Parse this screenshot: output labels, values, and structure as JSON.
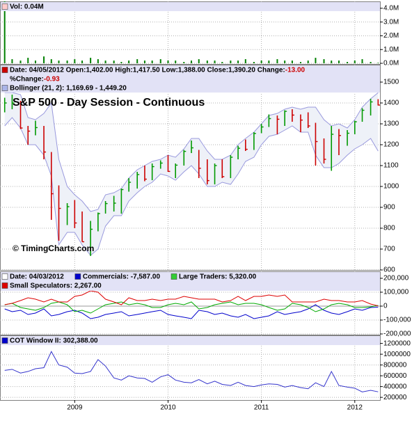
{
  "chart_data": [
    {
      "type": "bar",
      "header": [],
      "x": [
        2008.25,
        2008.33,
        2008.42,
        2008.5,
        2008.58,
        2008.67,
        2008.75,
        2008.83,
        2008.92,
        2009,
        2009.08,
        2009.17,
        2009.25,
        2009.33,
        2009.42,
        2009.5,
        2009.58,
        2009.67,
        2009.75,
        2009.83,
        2009.92,
        2010,
        2010.08,
        2010.17,
        2010.25,
        2010.33,
        2010.42,
        2010.5,
        2010.58,
        2010.67,
        2010.75,
        2010.83,
        2010.92,
        2011,
        2011.08,
        2011.17,
        2011.25,
        2011.33,
        2011.42,
        2011.5,
        2011.58,
        2011.67,
        2011.75,
        2011.83,
        2011.92,
        2012,
        2012.08,
        2012.17,
        2012.25
      ],
      "series": [
        {
          "name": "Vol: 0.04M",
          "color": "#008000",
          "box": "#ffcccc",
          "values": [
            4.5,
            0.3,
            0.2,
            0.4,
            0.2,
            0.5,
            0.3,
            0.2,
            0.2,
            0.3,
            0.2,
            0.4,
            0.3,
            0.2,
            0.2,
            0.1,
            0.2,
            0.3,
            0.2,
            0.2,
            0.3,
            0.2,
            0.2,
            0.1,
            0.2,
            0.3,
            0.2,
            0.2,
            0.1,
            0.2,
            0.2,
            0.3,
            0.1,
            0.2,
            0.2,
            0.3,
            0.2,
            0.2,
            0.1,
            0.2,
            0.4,
            0.3,
            0.2,
            0.2,
            0.1,
            0.2,
            0.3,
            0.1,
            0.04
          ]
        }
      ],
      "xlim": [
        2008.2,
        2012.27
      ],
      "xticks": [
        2009,
        2010,
        2011,
        2012
      ],
      "ylim": [
        0,
        4.5
      ],
      "yticks": [
        {
          "value": 0,
          "label": "0.0M"
        },
        {
          "value": 1,
          "label": "1.0M"
        },
        {
          "value": 2,
          "label": "2.0M"
        },
        {
          "value": 3,
          "label": "3.0M"
        },
        {
          "value": 4,
          "label": "4.0M"
        }
      ],
      "grid": true
    },
    {
      "type": "ohlc",
      "title": "S&P 500 - Day Session - Continuous",
      "annotation": "© TimingCharts.com",
      "header": [
        [
          {
            "box": "#cc0000",
            "text": [
              {
                "text": "Date: 04/05/2012 Open:1,402.00 High:1,417.50 Low:1,388.00 Close:1,390.20 Change:"
              },
              {
                "text": "-13.00",
                "color": "#cc0000"
              }
            ]
          }
        ],
        [
          {
            "text": [
              {
                "text": "%Change:"
              },
              {
                "text": "-0.93",
                "color": "#cc0000"
              }
            ]
          }
        ]
      ],
      "x": [
        2008.25,
        2008.33,
        2008.42,
        2008.5,
        2008.58,
        2008.67,
        2008.75,
        2008.83,
        2008.92,
        2009,
        2009.08,
        2009.17,
        2009.25,
        2009.33,
        2009.42,
        2009.5,
        2009.58,
        2009.67,
        2009.75,
        2009.83,
        2009.92,
        2010,
        2010.08,
        2010.17,
        2010.25,
        2010.33,
        2010.42,
        2010.5,
        2010.58,
        2010.67,
        2010.75,
        2010.83,
        2010.92,
        2011,
        2011.08,
        2011.17,
        2011.25,
        2011.33,
        2011.42,
        2011.5,
        2011.58,
        2011.67,
        2011.75,
        2011.83,
        2011.92,
        2012,
        2012.08,
        2012.17,
        2012.25
      ],
      "high": [
        1425,
        1440,
        1410,
        1290,
        1315,
        1290,
        1165,
        1005,
        920,
        935,
        880,
        835,
        875,
        930,
        955,
        990,
        1040,
        1070,
        1100,
        1110,
        1125,
        1150,
        1110,
        1175,
        1220,
        1175,
        1130,
        1110,
        1130,
        1150,
        1195,
        1225,
        1260,
        1300,
        1345,
        1340,
        1365,
        1370,
        1345,
        1355,
        1305,
        1230,
        1290,
        1275,
        1270,
        1315,
        1375,
        1420,
        1418
      ],
      "low": [
        1355,
        1370,
        1275,
        1200,
        1245,
        1130,
        840,
        740,
        815,
        800,
        735,
        667,
        785,
        870,
        880,
        870,
        975,
        990,
        1025,
        1030,
        1085,
        1070,
        1040,
        1100,
        1160,
        1040,
        1010,
        1010,
        1040,
        1040,
        1130,
        1170,
        1175,
        1255,
        1285,
        1250,
        1290,
        1310,
        1260,
        1280,
        1100,
        1110,
        1075,
        1150,
        1195,
        1250,
        1310,
        1340,
        1388
      ],
      "close": [
        1400,
        1400,
        1280,
        1265,
        1282,
        1165,
        965,
        895,
        903,
        825,
        735,
        795,
        870,
        918,
        920,
        985,
        1020,
        1057,
        1035,
        1095,
        1112,
        1072,
        1102,
        1168,
        1185,
        1087,
        1028,
        1100,
        1047,
        1140,
        1183,
        1178,
        1254,
        1285,
        1325,
        1322,
        1360,
        1342,
        1318,
        1290,
        1215,
        1130,
        1250,
        1244,
        1255,
        1310,
        1365,
        1405,
        1390
      ],
      "up_color": "#009900",
      "down_color": "#cc0000",
      "bands": {
        "name": "Bollinger (21, 2): 1,169.69 - 1,449.20",
        "color": "#9999dd",
        "box": "#aab4e8",
        "fill": "#eef1f8",
        "upper": [
          1450,
          1450,
          1440,
          1330,
          1320,
          1350,
          1400,
          1130,
          1000,
          960,
          930,
          880,
          890,
          960,
          970,
          990,
          1040,
          1080,
          1100,
          1120,
          1130,
          1150,
          1140,
          1180,
          1230,
          1230,
          1170,
          1130,
          1130,
          1150,
          1200,
          1230,
          1260,
          1300,
          1340,
          1350,
          1370,
          1380,
          1370,
          1380,
          1380,
          1320,
          1290,
          1300,
          1280,
          1320,
          1380,
          1420,
          1449.2
        ],
        "lower": [
          1290,
          1330,
          1280,
          1200,
          1200,
          1150,
          1050,
          720,
          780,
          780,
          720,
          670,
          700,
          810,
          860,
          860,
          930,
          970,
          1000,
          1020,
          1060,
          1050,
          1030,
          1070,
          1100,
          1060,
          1000,
          1000,
          1020,
          1010,
          1060,
          1120,
          1140,
          1200,
          1240,
          1250,
          1270,
          1290,
          1260,
          1260,
          1150,
          1090,
          1090,
          1110,
          1150,
          1180,
          1200,
          1230,
          1169.69
        ]
      },
      "xlim": [
        2008.2,
        2012.27
      ],
      "xticks": [
        2009,
        2010,
        2011,
        2012
      ],
      "ylim": [
        600,
        1500
      ],
      "yticks": [
        600,
        700,
        800,
        900,
        1000,
        1100,
        1200,
        1300,
        1400,
        1500
      ],
      "grid": true
    },
    {
      "type": "line",
      "header": [
        [
          {
            "box": "#ffffff",
            "text": [
              {
                "text": "Date: 04/03/2012"
              }
            ]
          }
        ]
      ],
      "x": [
        2008.25,
        2008.33,
        2008.42,
        2008.5,
        2008.58,
        2008.67,
        2008.75,
        2008.83,
        2008.92,
        2009,
        2009.08,
        2009.17,
        2009.25,
        2009.33,
        2009.42,
        2009.5,
        2009.58,
        2009.67,
        2009.75,
        2009.83,
        2009.92,
        2010,
        2010.08,
        2010.17,
        2010.25,
        2010.33,
        2010.42,
        2010.5,
        2010.58,
        2010.67,
        2010.75,
        2010.83,
        2010.92,
        2011,
        2011.08,
        2011.17,
        2011.25,
        2011.33,
        2011.42,
        2011.5,
        2011.58,
        2011.67,
        2011.75,
        2011.83,
        2011.92,
        2012,
        2012.08,
        2012.17,
        2012.25
      ],
      "series": [
        {
          "name": "Commercials: -7,587.00",
          "color": "#0000cc",
          "box": "#0000cc",
          "values": [
            -20000,
            -40000,
            -30000,
            -60000,
            -50000,
            -20000,
            -70000,
            -60000,
            -40000,
            -30000,
            -50000,
            -90000,
            -80000,
            -60000,
            -50000,
            -40000,
            -70000,
            -60000,
            -50000,
            -40000,
            -30000,
            -60000,
            -70000,
            -80000,
            -90000,
            -30000,
            -40000,
            -60000,
            -50000,
            -70000,
            -80000,
            -60000,
            -90000,
            -80000,
            -70000,
            -40000,
            -60000,
            -50000,
            -40000,
            -20000,
            10000,
            -30000,
            -50000,
            -60000,
            -40000,
            -20000,
            -30000,
            -10000,
            -7587
          ]
        },
        {
          "name": "Large Traders: 5,320.00",
          "color": "#00aa00",
          "box": "#33cc33",
          "values": [
            10000,
            20000,
            -10000,
            -20000,
            -30000,
            -10000,
            20000,
            30000,
            10000,
            -40000,
            -30000,
            -50000,
            -20000,
            10000,
            20000,
            30000,
            10000,
            20000,
            10000,
            -10000,
            -10000,
            10000,
            20000,
            10000,
            30000,
            -20000,
            -10000,
            10000,
            20000,
            30000,
            10000,
            20000,
            20000,
            10000,
            -10000,
            -30000,
            -20000,
            20000,
            10000,
            -10000,
            -40000,
            -20000,
            10000,
            20000,
            10000,
            -10000,
            -10000,
            -5000,
            5320
          ]
        },
        {
          "name": "Small Speculators: 2,267.00",
          "color": "#dd0000",
          "box": "#dd0000",
          "values": [
            10000,
            20000,
            40000,
            60000,
            50000,
            30000,
            50000,
            30000,
            30000,
            70000,
            80000,
            110000,
            100000,
            50000,
            30000,
            10000,
            60000,
            40000,
            40000,
            50000,
            40000,
            50000,
            50000,
            70000,
            60000,
            50000,
            50000,
            50000,
            30000,
            40000,
            70000,
            40000,
            70000,
            70000,
            80000,
            70000,
            80000,
            30000,
            30000,
            30000,
            30000,
            50000,
            40000,
            40000,
            30000,
            30000,
            40000,
            15000,
            2267
          ]
        }
      ],
      "xlim": [
        2008.2,
        2012.27
      ],
      "xticks": [
        2009,
        2010,
        2011,
        2012
      ],
      "ylim": [
        -200000,
        200000
      ],
      "yticks": [
        {
          "value": -200000,
          "label": "-200,000"
        },
        {
          "value": -100000,
          "label": "-100,000"
        },
        0,
        {
          "value": 100000,
          "label": "100,000"
        },
        {
          "value": 200000,
          "label": "200,000"
        }
      ],
      "grid": true
    },
    {
      "type": "line",
      "header": [],
      "x": [
        2008.25,
        2008.33,
        2008.42,
        2008.5,
        2008.58,
        2008.67,
        2008.75,
        2008.83,
        2008.92,
        2009,
        2009.08,
        2009.17,
        2009.25,
        2009.33,
        2009.42,
        2009.5,
        2009.58,
        2009.67,
        2009.75,
        2009.83,
        2009.92,
        2010,
        2010.08,
        2010.17,
        2010.25,
        2010.33,
        2010.42,
        2010.5,
        2010.58,
        2010.67,
        2010.75,
        2010.83,
        2010.92,
        2011,
        2011.08,
        2011.17,
        2011.25,
        2011.33,
        2011.42,
        2011.5,
        2011.58,
        2011.67,
        2011.75,
        2011.83,
        2011.92,
        2012,
        2012.08,
        2012.17,
        2012.25
      ],
      "series": [
        {
          "name": "COT Window II: 302,388.00",
          "color": "#3333cc",
          "box": "#0000cc",
          "values": [
            700000,
            720000,
            650000,
            680000,
            730000,
            750000,
            1050000,
            800000,
            760000,
            650000,
            640000,
            680000,
            900000,
            780000,
            560000,
            520000,
            600000,
            560000,
            550000,
            480000,
            580000,
            620000,
            520000,
            480000,
            470000,
            530000,
            450000,
            500000,
            440000,
            420000,
            480000,
            420000,
            400000,
            430000,
            450000,
            440000,
            390000,
            420000,
            380000,
            360000,
            470000,
            400000,
            680000,
            420000,
            390000,
            370000,
            300000,
            330000,
            302388
          ]
        }
      ],
      "xlim": [
        2008.2,
        2012.27
      ],
      "xticks": [
        2009,
        2010,
        2011,
        2012
      ],
      "ylim": [
        150000,
        1350000
      ],
      "yticks": [
        200000,
        400000,
        600000,
        800000,
        1000000,
        1200000
      ],
      "grid": true
    }
  ]
}
